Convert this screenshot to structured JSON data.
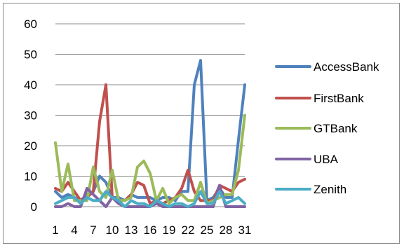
{
  "chart_data": {
    "type": "line",
    "title": "",
    "xlabel": "",
    "ylabel": "",
    "ylim": [
      0,
      60
    ],
    "yticks": [
      0,
      10,
      20,
      30,
      40,
      50,
      60
    ],
    "x": [
      1,
      2,
      3,
      4,
      5,
      6,
      7,
      8,
      9,
      10,
      11,
      12,
      13,
      14,
      15,
      16,
      17,
      18,
      19,
      20,
      21,
      22,
      23,
      24,
      25,
      26,
      27,
      28,
      29,
      30,
      31
    ],
    "xtick_labels": [
      "1",
      "4",
      "7",
      "10",
      "13",
      "16",
      "19",
      "22",
      "25",
      "28",
      "31"
    ],
    "xtick_positions": [
      1,
      4,
      7,
      10,
      13,
      16,
      19,
      22,
      25,
      28,
      31
    ],
    "grid": "horizontal",
    "legend_position": "right",
    "series": [
      {
        "name": "AccessBank",
        "color": "#4f81bd",
        "values": [
          5,
          3,
          4,
          3,
          2,
          4,
          5,
          10,
          8,
          3,
          3,
          2,
          4,
          3,
          3,
          3,
          2,
          3,
          3,
          2,
          5,
          5,
          40,
          48,
          2,
          3,
          6,
          3,
          3,
          22,
          40
        ]
      },
      {
        "name": "FirstBank",
        "color": "#c0504d",
        "values": [
          6,
          5,
          8,
          5,
          2,
          3,
          5,
          28,
          40,
          3,
          2,
          2,
          4,
          8,
          7,
          1,
          2,
          1,
          2,
          3,
          6,
          12,
          5,
          2,
          2,
          2,
          7,
          6,
          5,
          8,
          9
        ]
      },
      {
        "name": "GTBank",
        "color": "#9bbb59",
        "values": [
          21,
          5,
          14,
          2,
          2,
          2,
          13,
          5,
          3,
          12,
          2,
          2,
          3,
          13,
          15,
          11,
          2,
          6,
          1,
          3,
          4,
          2,
          2,
          8,
          1,
          2,
          3,
          4,
          4,
          12,
          30
        ]
      },
      {
        "name": "UBA",
        "color": "#8064a2",
        "values": [
          0,
          0,
          1,
          0,
          0,
          6,
          4,
          2,
          0,
          3,
          1,
          0,
          0,
          0,
          0,
          0,
          1,
          0,
          0,
          0,
          0,
          0,
          0,
          0,
          0,
          0,
          7,
          0,
          0,
          0,
          0
        ]
      },
      {
        "name": "Zenith",
        "color": "#4bacc6",
        "values": [
          1,
          2,
          3,
          3,
          1,
          3,
          2,
          2,
          5,
          3,
          2,
          0,
          2,
          1,
          1,
          0,
          2,
          1,
          0,
          1,
          1,
          0,
          1,
          5,
          1,
          1,
          5,
          1,
          2,
          3,
          1
        ]
      }
    ]
  }
}
